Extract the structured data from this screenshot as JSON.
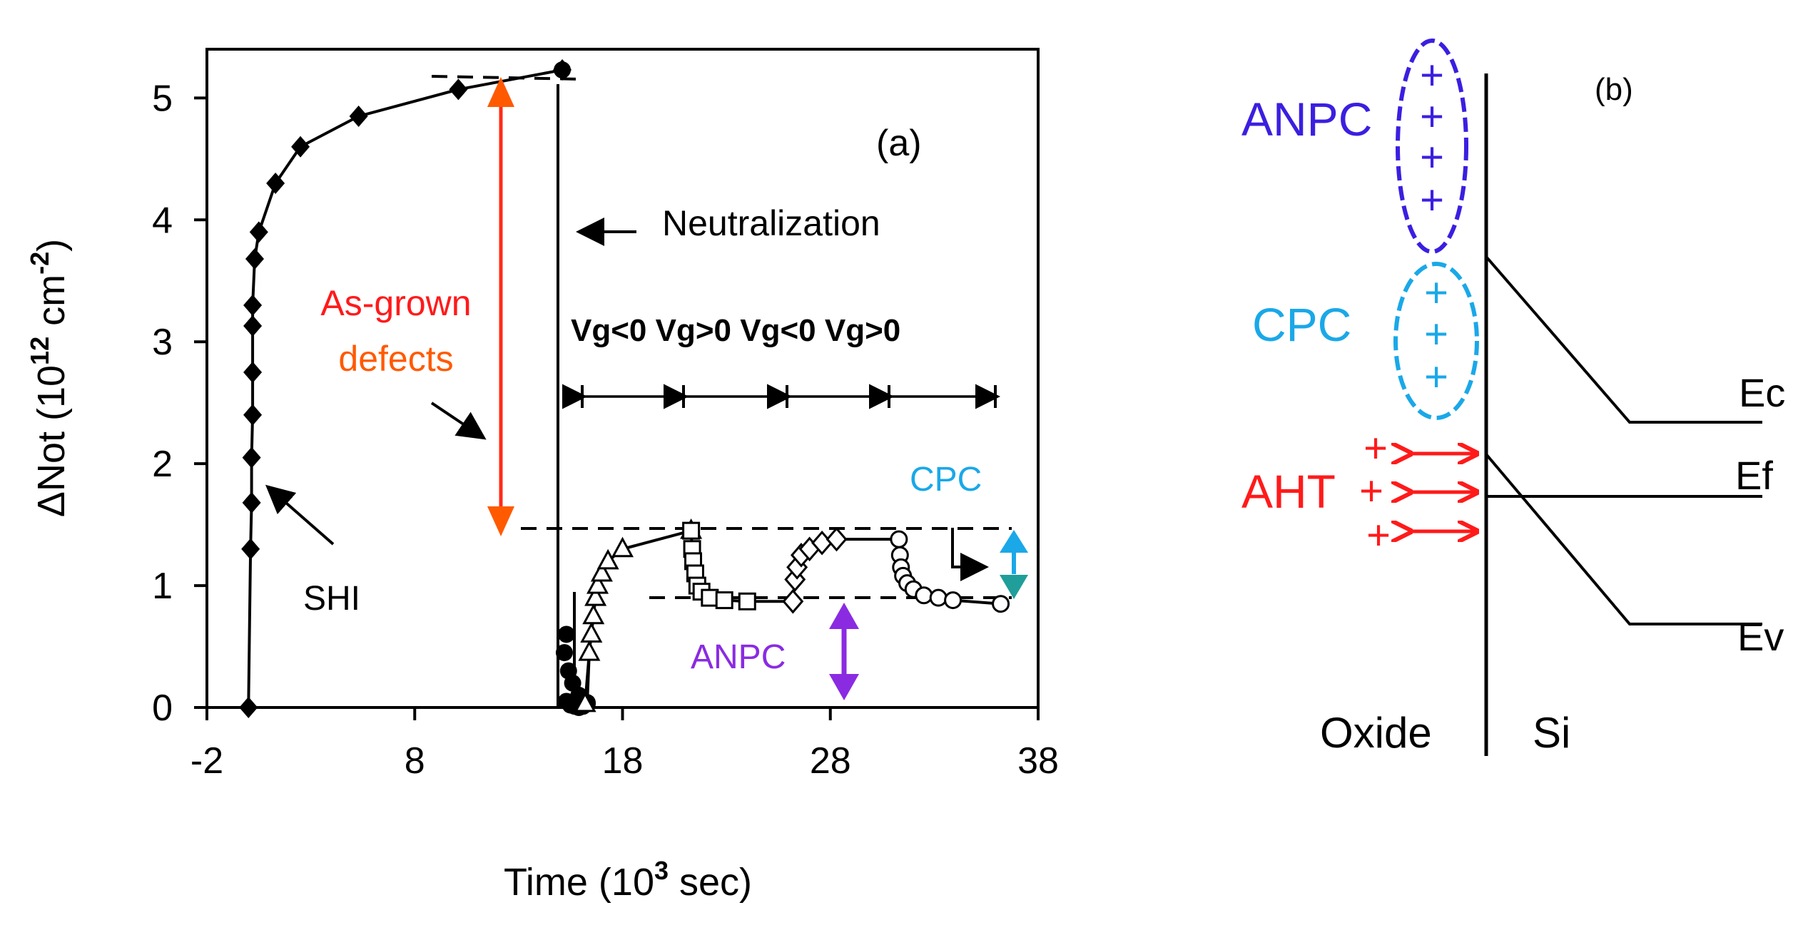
{
  "chart_data": [
    {
      "type": "scatter",
      "panel_label": "(a)",
      "xlabel_main": "Time (10",
      "xlabel_exp": "3",
      "xlabel_tail": " sec)",
      "ylabel_main": "ΔNot  (10",
      "ylabel_exp1": "12",
      "ylabel_mid": " cm",
      "ylabel_exp2": "-2",
      "ylabel_tail": ")",
      "xlim": [
        -2,
        38
      ],
      "ylim": [
        0,
        5.4
      ],
      "xticks": [
        -2,
        8,
        18,
        28,
        38
      ],
      "yticks": [
        0,
        1,
        2,
        3,
        4,
        5
      ],
      "series": [
        {
          "name": "SHI irradiation",
          "marker": "diamond-filled",
          "x": [
            0,
            0.1,
            0.15,
            0.15,
            0.2,
            0.2,
            0.2,
            0.2,
            0.3,
            0.5,
            1.3,
            2.5,
            5.3,
            10.1,
            15.1
          ],
          "y": [
            0,
            1.3,
            1.68,
            2.05,
            2.4,
            2.75,
            3.13,
            3.3,
            3.68,
            3.9,
            4.3,
            4.6,
            4.85,
            5.07,
            5.23
          ]
        },
        {
          "name": "Neutralization",
          "marker": "circle-filled",
          "x": [
            15.1,
            15.3,
            15.5,
            15.7,
            15.9,
            16.1,
            16.3,
            15.3,
            15.2,
            15.4,
            15.6,
            15.9,
            16.3
          ],
          "y": [
            5.23,
            0.05,
            0.02,
            0.01,
            0.0,
            0.01,
            0.03,
            0.6,
            0.45,
            0.3,
            0.2,
            0.1,
            0.04
          ]
        },
        {
          "name": "Vg<0 (1)",
          "marker": "triangle-open",
          "x": [
            16.2,
            16.4,
            16.5,
            16.6,
            16.7,
            16.8,
            17.0,
            17.3,
            18.0,
            21.3
          ],
          "y": [
            0.03,
            0.45,
            0.6,
            0.75,
            0.9,
            1.0,
            1.1,
            1.2,
            1.3,
            1.45
          ]
        },
        {
          "name": "Vg>0 (1)",
          "marker": "square-open",
          "x": [
            21.3,
            21.35,
            21.4,
            21.5,
            21.6,
            21.8,
            22.2,
            22.9,
            24.0
          ],
          "y": [
            1.45,
            1.3,
            1.2,
            1.1,
            1.0,
            0.95,
            0.9,
            0.88,
            0.87
          ]
        },
        {
          "name": "Vg<0 (2)",
          "marker": "diamond-open",
          "x": [
            26.2,
            26.3,
            26.4,
            26.6,
            27.0,
            27.6,
            28.3
          ],
          "y": [
            0.87,
            1.05,
            1.15,
            1.25,
            1.3,
            1.35,
            1.38
          ]
        },
        {
          "name": "Vg>0 (2)",
          "marker": "circle-open",
          "x": [
            31.3,
            31.35,
            31.4,
            31.5,
            31.7,
            32.0,
            32.5,
            33.2,
            33.9,
            36.2
          ],
          "y": [
            1.38,
            1.25,
            1.15,
            1.08,
            1.02,
            0.97,
            0.92,
            0.9,
            0.88,
            0.85
          ]
        }
      ],
      "annotations": {
        "neutralization": "Neutralization",
        "as_grown_1": "As-grown",
        "as_grown_2": "defects",
        "gate_bias": "Vg<0 Vg>0 Vg<0 Vg>0",
        "cpc": "CPC",
        "anpc": "ANPC",
        "shi": "SHI"
      },
      "colors": {
        "red_arrow": "#ff2a1a",
        "as_grown_text": "#ff5a00",
        "cpc": "#1aa8e8",
        "cpc_arrow_down": "#1f9e9a",
        "anpc": "#8a2be2"
      }
    },
    {
      "type": "diagram",
      "panel_label": "(b)",
      "labels": {
        "anpc": "ANPC",
        "cpc": "CPC",
        "aht": "AHT",
        "ec": "Ec",
        "ef": "Ef",
        "ev": "Ev",
        "oxide": "Oxide",
        "si": "Si"
      },
      "plus_sign": "+",
      "colors": {
        "anpc": "#3a1fe0",
        "cpc": "#1aa8e8",
        "aht": "#ff1a1a"
      }
    }
  ]
}
